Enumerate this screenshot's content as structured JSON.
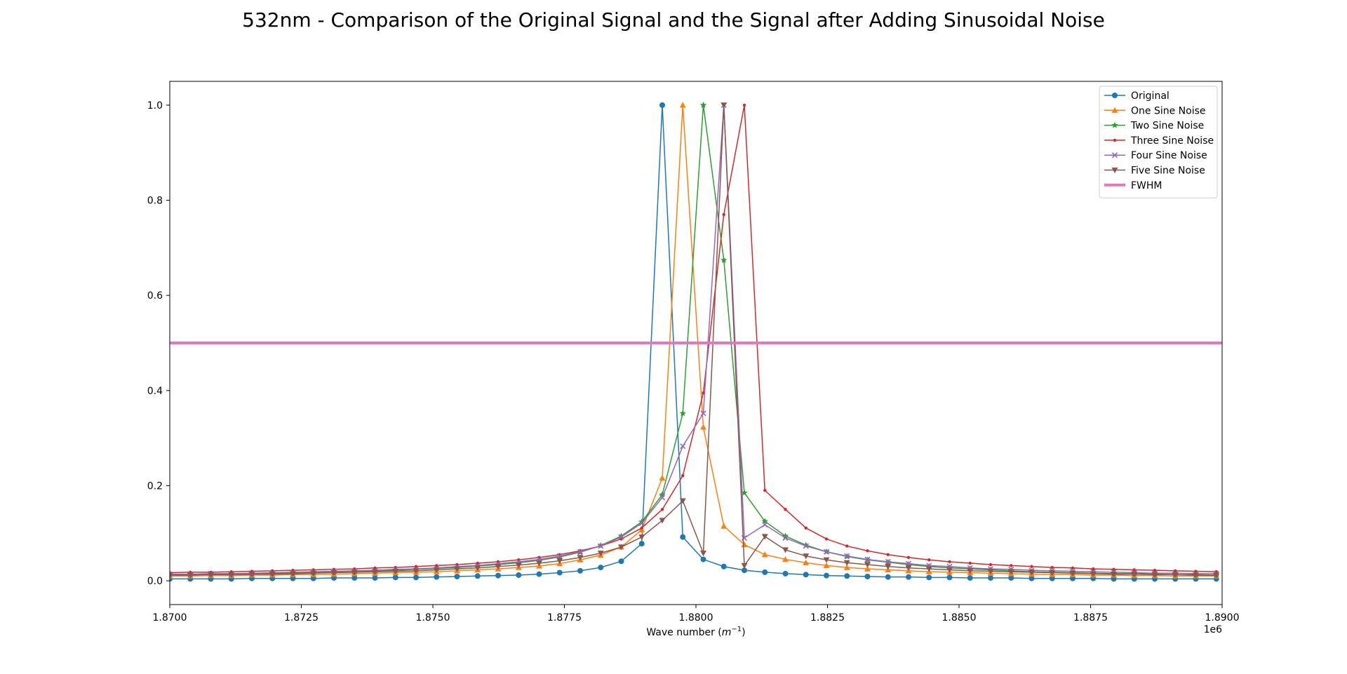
{
  "chart_data": {
    "type": "line",
    "title": "532nm - Comparison of the Original Signal and the Signal after Adding Sinusoidal Noise",
    "xlabel": "Wave number (m⁻¹)",
    "xlabel_main": "Wave number (",
    "xlabel_unit_base": "m",
    "xlabel_unit_exp": "−1",
    "xlabel_close": ")",
    "x_offset_label": "1e6",
    "ylabel": "",
    "xlim": [
      1870000,
      1890000
    ],
    "ylim": [
      -0.05,
      1.05
    ],
    "x_ticks": [
      1870000,
      1872500,
      1875000,
      1877500,
      1880000,
      1882500,
      1885000,
      1887500,
      1890000
    ],
    "x_tick_labels": [
      "1.8700",
      "1.8725",
      "1.8750",
      "1.8775",
      "1.8800",
      "1.8825",
      "1.8850",
      "1.8875",
      "1.8900"
    ],
    "y_ticks": [
      0.0,
      0.2,
      0.4,
      0.6,
      0.8,
      1.0
    ],
    "y_tick_labels": [
      "0.0",
      "0.2",
      "0.4",
      "0.6",
      "0.8",
      "1.0"
    ],
    "grid": false,
    "legend_position": "top-right",
    "x": [
      1870000,
      1870390,
      1870780,
      1871170,
      1871560,
      1871950,
      1872340,
      1872730,
      1873120,
      1873510,
      1873900,
      1874290,
      1874680,
      1875070,
      1875460,
      1875850,
      1876240,
      1876630,
      1877020,
      1877410,
      1877800,
      1878190,
      1878580,
      1878970,
      1879360,
      1879750,
      1880140,
      1880530,
      1880920,
      1881310,
      1881700,
      1882090,
      1882480,
      1882870,
      1883260,
      1883650,
      1884040,
      1884430,
      1884820,
      1885210,
      1885600,
      1885990,
      1886380,
      1886770,
      1887160,
      1887550,
      1887940,
      1888330,
      1888720,
      1889110,
      1889500,
      1889890
    ],
    "series": [
      {
        "name": "Original",
        "color": "#1f77b4",
        "marker": "circle",
        "values": [
          0.004,
          0.004,
          0.004,
          0.004,
          0.005,
          0.005,
          0.005,
          0.005,
          0.006,
          0.006,
          0.006,
          0.007,
          0.007,
          0.008,
          0.009,
          0.01,
          0.011,
          0.012,
          0.014,
          0.017,
          0.021,
          0.028,
          0.041,
          0.078,
          1.0,
          0.092,
          0.045,
          0.03,
          0.022,
          0.018,
          0.015,
          0.013,
          0.011,
          0.01,
          0.009,
          0.008,
          0.008,
          0.007,
          0.007,
          0.006,
          0.006,
          0.006,
          0.005,
          0.005,
          0.005,
          0.005,
          0.004,
          0.004,
          0.004,
          0.004,
          0.004,
          0.004
        ]
      },
      {
        "name": "One Sine Noise",
        "color": "#ff7f0e",
        "marker": "triangle-up",
        "values": [
          0.01,
          0.01,
          0.011,
          0.011,
          0.012,
          0.012,
          0.013,
          0.013,
          0.014,
          0.015,
          0.016,
          0.017,
          0.018,
          0.019,
          0.021,
          0.023,
          0.025,
          0.028,
          0.031,
          0.036,
          0.044,
          0.054,
          0.071,
          0.107,
          0.216,
          1.0,
          0.323,
          0.115,
          0.076,
          0.055,
          0.045,
          0.038,
          0.032,
          0.028,
          0.025,
          0.023,
          0.021,
          0.019,
          0.018,
          0.017,
          0.016,
          0.015,
          0.014,
          0.013,
          0.013,
          0.012,
          0.012,
          0.011,
          0.011,
          0.01,
          0.01,
          0.01
        ]
      },
      {
        "name": "Two Sine Noise",
        "color": "#2ca02c",
        "marker": "star",
        "values": [
          0.013,
          0.013,
          0.014,
          0.014,
          0.015,
          0.016,
          0.016,
          0.017,
          0.018,
          0.019,
          0.021,
          0.022,
          0.024,
          0.026,
          0.028,
          0.031,
          0.034,
          0.038,
          0.043,
          0.05,
          0.06,
          0.074,
          0.094,
          0.124,
          0.181,
          0.352,
          1.0,
          0.674,
          0.185,
          0.125,
          0.094,
          0.075,
          0.061,
          0.051,
          0.044,
          0.039,
          0.034,
          0.03,
          0.027,
          0.025,
          0.023,
          0.021,
          0.019,
          0.018,
          0.017,
          0.016,
          0.015,
          0.015,
          0.014,
          0.013,
          0.013,
          0.012
        ]
      },
      {
        "name": "Three Sine Noise",
        "color": "#d62728",
        "marker": "point",
        "values": [
          0.017,
          0.018,
          0.018,
          0.019,
          0.02,
          0.021,
          0.022,
          0.023,
          0.024,
          0.025,
          0.027,
          0.028,
          0.03,
          0.032,
          0.034,
          0.037,
          0.04,
          0.044,
          0.049,
          0.055,
          0.063,
          0.073,
          0.088,
          0.111,
          0.15,
          0.221,
          0.395,
          0.77,
          1.0,
          0.19,
          0.15,
          0.111,
          0.088,
          0.073,
          0.063,
          0.055,
          0.049,
          0.044,
          0.04,
          0.037,
          0.034,
          0.032,
          0.03,
          0.028,
          0.027,
          0.025,
          0.024,
          0.023,
          0.022,
          0.021,
          0.02,
          0.019
        ]
      },
      {
        "name": "Four Sine Noise",
        "color": "#9467bd",
        "marker": "x",
        "values": [
          0.014,
          0.014,
          0.015,
          0.015,
          0.016,
          0.017,
          0.018,
          0.019,
          0.02,
          0.021,
          0.022,
          0.024,
          0.025,
          0.027,
          0.03,
          0.032,
          0.036,
          0.04,
          0.045,
          0.052,
          0.061,
          0.073,
          0.092,
          0.121,
          0.175,
          0.283,
          0.352,
          1.0,
          0.09,
          0.118,
          0.09,
          0.073,
          0.061,
          0.052,
          0.045,
          0.04,
          0.036,
          0.032,
          0.03,
          0.027,
          0.025,
          0.024,
          0.022,
          0.021,
          0.02,
          0.019,
          0.018,
          0.017,
          0.016,
          0.016,
          0.015,
          0.015
        ]
      },
      {
        "name": "Five Sine Noise",
        "color": "#8c564b",
        "marker": "triangle-down",
        "values": [
          0.012,
          0.012,
          0.013,
          0.013,
          0.014,
          0.014,
          0.015,
          0.016,
          0.017,
          0.018,
          0.019,
          0.02,
          0.021,
          0.023,
          0.025,
          0.027,
          0.03,
          0.033,
          0.037,
          0.042,
          0.049,
          0.058,
          0.071,
          0.092,
          0.127,
          0.168,
          0.058,
          1.0,
          0.032,
          0.093,
          0.065,
          0.052,
          0.044,
          0.038,
          0.034,
          0.03,
          0.027,
          0.025,
          0.023,
          0.021,
          0.02,
          0.019,
          0.018,
          0.017,
          0.016,
          0.015,
          0.014,
          0.014,
          0.013,
          0.013,
          0.012,
          0.012
        ]
      }
    ],
    "reference_lines": [
      {
        "name": "FWHM",
        "color": "#e377c2",
        "y": 0.5
      }
    ]
  }
}
